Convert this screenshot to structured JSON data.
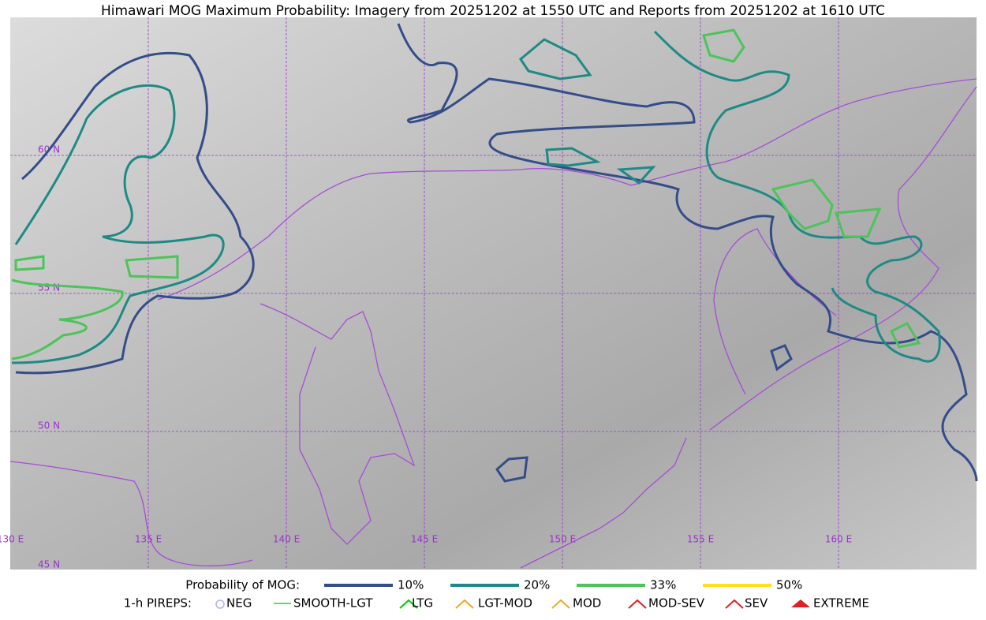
{
  "title": "Himawari MOG Maximum Probability: Imagery from 20251202 at 1550 UTC and Reports from 20251202 at 1610 UTC",
  "grid_labels": {
    "lat": [
      "60 N",
      "55 N",
      "50 N",
      "45 N"
    ],
    "lon": [
      "130 E",
      "135 E",
      "140 E",
      "145 E",
      "150 E",
      "155 E",
      "160 E"
    ]
  },
  "legend": {
    "mog_title": "Probability of MOG:",
    "mog_levels": [
      {
        "label": "10%",
        "color": "#344d8a"
      },
      {
        "label": "20%",
        "color": "#1f8a85"
      },
      {
        "label": "33%",
        "color": "#4cc45a"
      },
      {
        "label": "50%",
        "color": "#ffe01a"
      }
    ],
    "pireps_title": "1-h PIREPS:",
    "pireps": [
      "NEG",
      "SMOOTH-LGT",
      "LTG",
      "LGT-MOD",
      "MOD",
      "MOD-SEV",
      "SEV",
      "EXTREME"
    ]
  }
}
